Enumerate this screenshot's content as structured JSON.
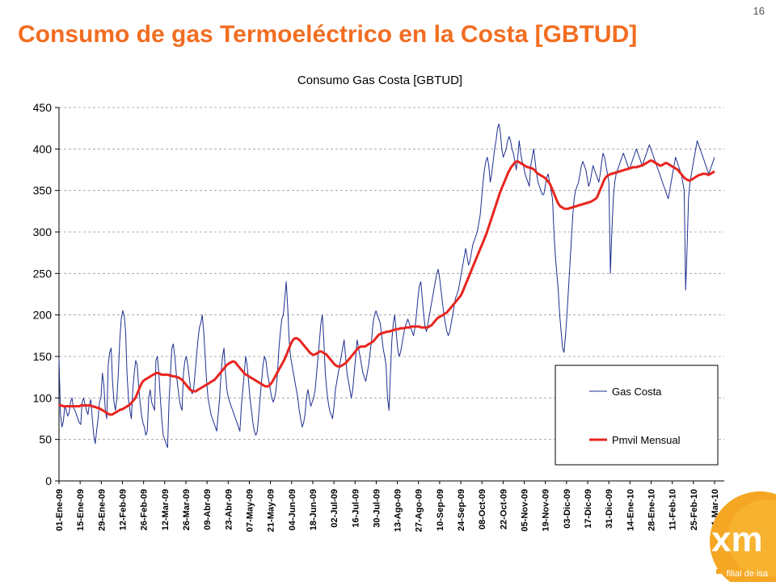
{
  "slide": {
    "number": "16",
    "title": "Consumo de gas Termoeléctrico en la Costa [GBTUD]"
  },
  "logo": {
    "mark": "xm",
    "tagline": "filial de isa",
    "color": "#f5a623"
  },
  "chart_data": {
    "type": "line",
    "title": "Consumo Gas Costa [GBTUD]",
    "xlabel": "",
    "ylabel": "",
    "ylim": [
      0,
      450
    ],
    "yticks": [
      0,
      50,
      100,
      150,
      200,
      250,
      300,
      350,
      400,
      450
    ],
    "grid": "horizontal-dashed",
    "legend_position": "bottom-right",
    "x_start": "2009-01-01",
    "x_end": "2010-03-11",
    "x_tick_labels": [
      "01-Ene-09",
      "15-Ene-09",
      "29-Ene-09",
      "12-Feb-09",
      "26-Feb-09",
      "12-Mar-09",
      "26-Mar-09",
      "09-Abr-09",
      "23-Abr-09",
      "07-May-09",
      "21-May-09",
      "04-Jun-09",
      "18-Jun-09",
      "02-Jul-09",
      "16-Jul-09",
      "30-Jul-09",
      "13-Ago-09",
      "27-Ago-09",
      "10-Sep-09",
      "24-Sep-09",
      "08-Oct-09",
      "22-Oct-09",
      "05-Nov-09",
      "19-Nov-09",
      "03-Dic-09",
      "17-Dic-09",
      "31-Dic-09",
      "14-Ene-10",
      "28-Ene-10",
      "11-Feb-10",
      "25-Feb-10",
      "11-Mar-10"
    ],
    "series": [
      {
        "name": "Gas Costa",
        "color": "#1f2f8f",
        "line_width": 1,
        "values": [
          148,
          80,
          65,
          72,
          90,
          85,
          78,
          82,
          95,
          100,
          88,
          85,
          80,
          75,
          70,
          68,
          95,
          100,
          92,
          85,
          80,
          92,
          98,
          75,
          55,
          45,
          60,
          75,
          95,
          100,
          130,
          115,
          85,
          75,
          140,
          155,
          160,
          120,
          95,
          85,
          100,
          130,
          170,
          195,
          205,
          200,
          180,
          130,
          100,
          85,
          75,
          110,
          130,
          145,
          140,
          115,
          95,
          80,
          70,
          65,
          55,
          60,
          100,
          110,
          95,
          90,
          85,
          145,
          150,
          130,
          100,
          75,
          55,
          50,
          45,
          40,
          95,
          130,
          160,
          165,
          150,
          130,
          115,
          100,
          90,
          85,
          130,
          145,
          150,
          140,
          125,
          110,
          105,
          110,
          130,
          150,
          170,
          185,
          190,
          200,
          180,
          150,
          120,
          100,
          90,
          80,
          75,
          70,
          65,
          60,
          80,
          100,
          130,
          150,
          160,
          130,
          110,
          100,
          95,
          90,
          85,
          80,
          75,
          70,
          65,
          60,
          90,
          110,
          130,
          150,
          140,
          120,
          100,
          85,
          70,
          60,
          55,
          60,
          80,
          100,
          120,
          140,
          150,
          145,
          130,
          120,
          110,
          100,
          95,
          100,
          110,
          130,
          160,
          180,
          195,
          200,
          220,
          240,
          210,
          170,
          150,
          140,
          130,
          120,
          110,
          100,
          85,
          75,
          65,
          70,
          80,
          100,
          110,
          100,
          90,
          95,
          100,
          110,
          130,
          150,
          170,
          190,
          200,
          170,
          130,
          110,
          95,
          85,
          80,
          75,
          90,
          110,
          120,
          130,
          140,
          150,
          160,
          170,
          150,
          130,
          120,
          110,
          100,
          110,
          130,
          150,
          170,
          160,
          150,
          140,
          130,
          125,
          120,
          130,
          140,
          155,
          170,
          190,
          200,
          205,
          200,
          195,
          190,
          175,
          160,
          150,
          140,
          100,
          85,
          130,
          170,
          190,
          200,
          180,
          160,
          150,
          155,
          165,
          175,
          185,
          190,
          195,
          190,
          185,
          180,
          175,
          185,
          200,
          220,
          235,
          240,
          220,
          200,
          185,
          180,
          190,
          200,
          210,
          220,
          230,
          240,
          250,
          255,
          245,
          230,
          215,
          200,
          190,
          180,
          175,
          180,
          190,
          200,
          210,
          220,
          225,
          230,
          240,
          250,
          260,
          270,
          280,
          270,
          260,
          265,
          275,
          285,
          290,
          295,
          300,
          310,
          320,
          340,
          360,
          375,
          385,
          390,
          380,
          360,
          370,
          385,
          400,
          410,
          425,
          430,
          420,
          400,
          390,
          395,
          400,
          410,
          415,
          410,
          400,
          395,
          385,
          375,
          390,
          410,
          395,
          385,
          380,
          370,
          365,
          360,
          355,
          380,
          390,
          400,
          385,
          370,
          360,
          355,
          350,
          345,
          345,
          355,
          365,
          370,
          360,
          350,
          340,
          300,
          270,
          250,
          230,
          200,
          180,
          160,
          155,
          175,
          200,
          230,
          260,
          290,
          320,
          340,
          350,
          355,
          360,
          370,
          380,
          385,
          380,
          375,
          365,
          355,
          360,
          370,
          380,
          375,
          370,
          365,
          360,
          370,
          385,
          395,
          390,
          380,
          370,
          360,
          250,
          300,
          340,
          360,
          370,
          375,
          380,
          385,
          390,
          395,
          390,
          385,
          380,
          375,
          380,
          385,
          390,
          395,
          400,
          395,
          390,
          385,
          380,
          385,
          390,
          395,
          400,
          405,
          400,
          395,
          390,
          385,
          380,
          375,
          370,
          365,
          360,
          355,
          350,
          345,
          340,
          350,
          360,
          370,
          380,
          390,
          385,
          380,
          375,
          370,
          360,
          350,
          230,
          280,
          340,
          360,
          370,
          380,
          390,
          400,
          410,
          405,
          400,
          395,
          390,
          385,
          380,
          375,
          370,
          375,
          380,
          385,
          390
        ]
      },
      {
        "name": "Pmvil Mensual",
        "color": "#e8251f",
        "line_width": 3,
        "values": [
          92,
          91,
          91,
          90,
          90,
          90,
          90,
          90,
          90,
          90,
          90,
          90,
          90,
          90,
          90,
          90,
          91,
          91,
          91,
          91,
          91,
          91,
          91,
          91,
          90,
          90,
          89,
          89,
          88,
          88,
          87,
          86,
          85,
          84,
          83,
          82,
          81,
          80,
          80,
          80,
          81,
          82,
          83,
          84,
          85,
          86,
          86,
          87,
          88,
          89,
          90,
          91,
          92,
          94,
          96,
          98,
          100,
          104,
          108,
          112,
          116,
          119,
          121,
          122,
          123,
          124,
          125,
          126,
          127,
          128,
          129,
          130,
          130,
          130,
          129,
          128,
          128,
          128,
          128,
          128,
          128,
          127,
          127,
          126,
          126,
          126,
          125,
          125,
          124,
          123,
          122,
          120,
          118,
          116,
          114,
          112,
          110,
          109,
          108,
          108,
          108,
          109,
          110,
          111,
          112,
          113,
          114,
          115,
          116,
          117,
          118,
          119,
          120,
          121,
          122,
          124,
          126,
          128,
          130,
          132,
          134,
          136,
          138,
          140,
          141,
          142,
          143,
          144,
          144,
          143,
          141,
          139,
          137,
          135,
          133,
          131,
          129,
          128,
          127,
          126,
          125,
          124,
          123,
          122,
          121,
          120,
          119,
          118,
          117,
          116,
          115,
          114,
          114,
          114,
          115,
          117,
          119,
          122,
          125,
          128,
          131,
          134,
          137,
          140,
          143,
          146,
          150,
          154,
          158,
          162,
          166,
          169,
          171,
          172,
          172,
          171,
          170,
          168,
          166,
          164,
          162,
          160,
          158,
          156,
          154,
          153,
          152,
          152,
          153,
          154,
          155,
          156,
          156,
          155,
          154,
          153,
          152,
          150,
          148,
          146,
          144,
          142,
          140,
          139,
          138,
          138,
          138,
          139,
          140,
          141,
          142,
          144,
          146,
          148,
          150,
          152,
          154,
          156,
          158,
          160,
          161,
          162,
          162,
          162,
          162,
          163,
          164,
          165,
          166,
          167,
          168,
          170,
          172,
          174,
          176,
          177,
          178,
          178,
          179,
          179,
          180,
          180,
          180,
          181,
          181,
          182,
          182,
          183,
          183,
          183,
          184,
          184,
          184,
          184,
          185,
          185,
          185,
          185,
          186,
          186,
          186,
          186,
          186,
          186,
          186,
          185,
          185,
          185,
          185,
          185,
          185,
          186,
          187,
          188,
          190,
          192,
          194,
          196,
          197,
          198,
          199,
          200,
          201,
          202,
          203,
          205,
          207,
          209,
          211,
          213,
          215,
          217,
          219,
          221,
          223,
          226,
          230,
          234,
          238,
          242,
          246,
          250,
          254,
          258,
          262,
          266,
          270,
          274,
          278,
          282,
          286,
          290,
          294,
          298,
          303,
          308,
          313,
          318,
          323,
          328,
          333,
          338,
          343,
          348,
          352,
          356,
          360,
          364,
          368,
          372,
          375,
          378,
          380,
          382,
          384,
          385,
          385,
          384,
          383,
          382,
          381,
          380,
          379,
          378,
          378,
          377,
          377,
          376,
          375,
          373,
          371,
          370,
          369,
          368,
          367,
          366,
          365,
          363,
          361,
          359,
          356,
          352,
          348,
          344,
          340,
          336,
          333,
          331,
          330,
          329,
          328,
          328,
          328,
          328,
          329,
          329,
          330,
          330,
          331,
          331,
          332,
          332,
          333,
          333,
          334,
          334,
          335,
          335,
          336,
          336,
          337,
          338,
          339,
          340,
          342,
          346,
          350,
          354,
          358,
          362,
          365,
          367,
          368,
          369,
          370,
          370,
          371,
          371,
          372,
          372,
          373,
          373,
          374,
          374,
          375,
          375,
          376,
          376,
          377,
          377,
          378,
          378,
          378,
          378,
          379,
          379,
          380,
          380,
          381,
          382,
          383,
          384,
          385,
          386,
          386,
          385,
          384,
          383,
          382,
          381,
          380,
          380,
          381,
          382,
          383,
          383,
          382,
          381,
          380,
          379,
          378,
          377,
          376,
          375,
          373,
          371,
          369,
          367,
          365,
          364,
          363,
          362,
          362,
          363,
          364,
          365,
          366,
          367,
          368,
          369,
          369,
          370,
          370,
          370,
          370,
          369,
          369,
          370,
          371,
          372,
          373
        ]
      }
    ]
  }
}
